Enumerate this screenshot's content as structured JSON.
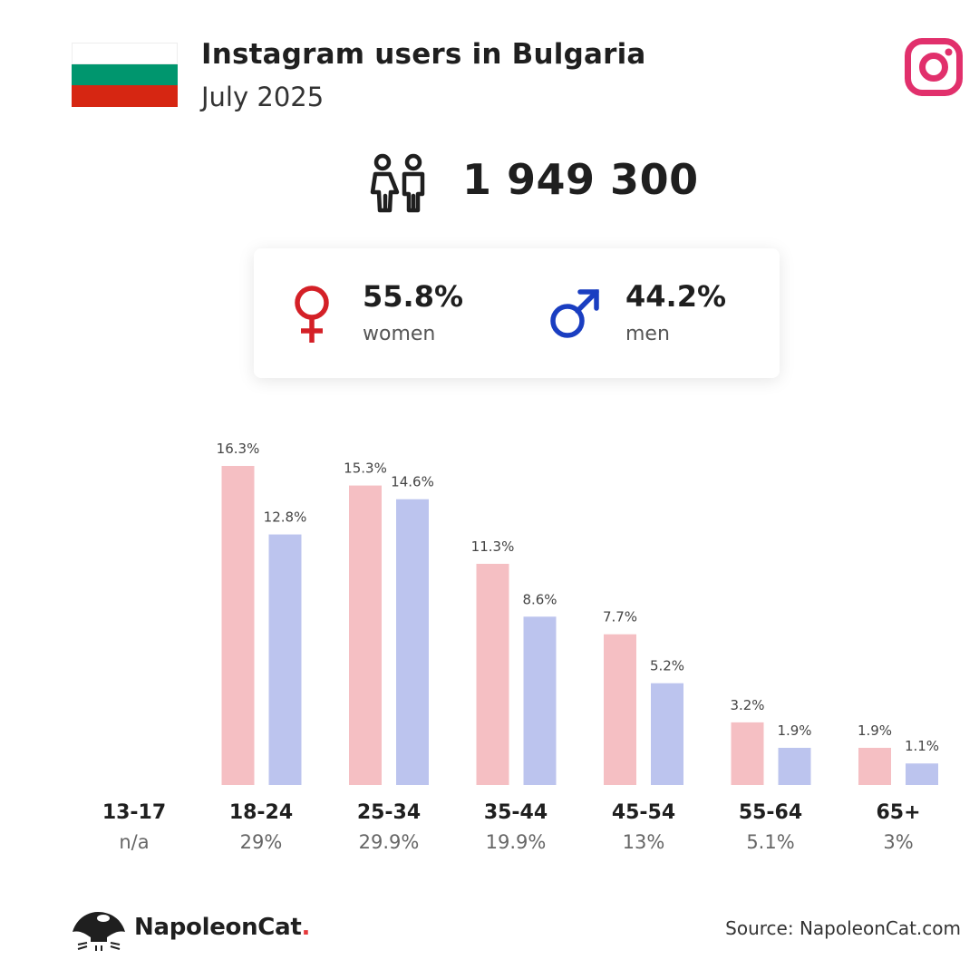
{
  "header": {
    "title": "Instagram users in Bulgaria",
    "subtitle": "July 2025"
  },
  "colors": {
    "flag": [
      "#ffffff",
      "#00966e",
      "#d62612"
    ],
    "instagram": "#e1306c",
    "women_icon": "#d42027",
    "men_icon": "#1a3ec1",
    "women_bar": "#f5bfc3",
    "men_bar": "#bcc4ee"
  },
  "icons": {
    "flag": "bulgaria-flag-icon",
    "platform": "instagram-icon",
    "users": "people-icon",
    "women": "female-symbol-icon",
    "men": "male-symbol-icon",
    "brand": "napoleoncat-logo-icon"
  },
  "total": {
    "users": "1 949 300"
  },
  "gender": {
    "women": {
      "pct": "55.8%",
      "label": "women"
    },
    "men": {
      "pct": "44.2%",
      "label": "men"
    }
  },
  "chart_data": {
    "type": "bar",
    "categories": [
      "13-17",
      "18-24",
      "25-34",
      "35-44",
      "45-54",
      "55-64",
      "65+"
    ],
    "category_shares": [
      "n/a",
      "29%",
      "29.9%",
      "19.9%",
      "13%",
      "5.1%",
      "3%"
    ],
    "series": [
      {
        "values": [
          null,
          16.3,
          15.3,
          11.3,
          7.7,
          3.2,
          1.9
        ],
        "labels": [
          "",
          "16.3%",
          "15.3%",
          "11.3%",
          "7.7%",
          "3.2%",
          "1.9%"
        ]
      },
      {
        "values": [
          null,
          12.8,
          14.6,
          8.6,
          5.2,
          1.9,
          1.1
        ],
        "labels": [
          "",
          "12.8%",
          "14.6%",
          "8.6%",
          "5.2%",
          "1.9%",
          "1.1%"
        ]
      }
    ],
    "ylim": [
      0,
      16.3
    ],
    "grid": false,
    "legend": "none"
  },
  "footer": {
    "brand_name": "NapoleonCat",
    "brand_dot": ".",
    "source": "Source: NapoleonCat.com"
  }
}
